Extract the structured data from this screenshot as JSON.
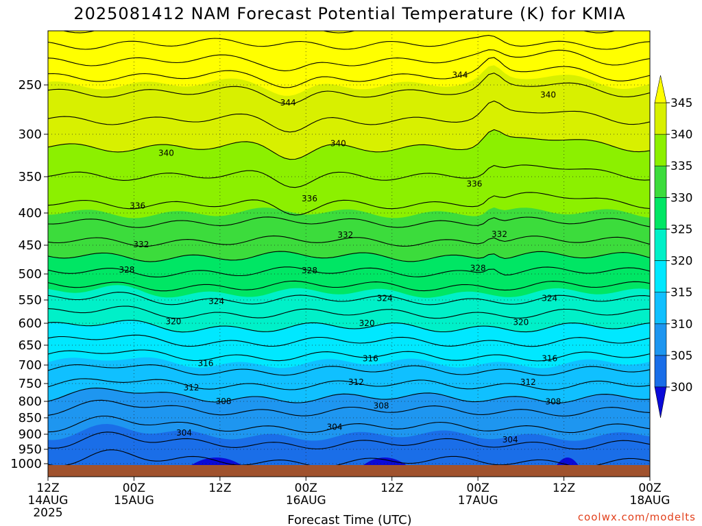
{
  "chart_data": {
    "type": "heatmap",
    "title": "2025081412 NAM Forecast Potential Temperature (K) for KMIA",
    "xlabel": "Forecast Time (UTC)",
    "ylabel": "",
    "x_ticks": [
      {
        "hour": 0,
        "line1": "12Z",
        "line2": "14AUG",
        "line3": "2025"
      },
      {
        "hour": 12,
        "line1": "00Z",
        "line2": "15AUG",
        "line3": ""
      },
      {
        "hour": 24,
        "line1": "12Z",
        "line2": "",
        "line3": ""
      },
      {
        "hour": 36,
        "line1": "00Z",
        "line2": "16AUG",
        "line3": ""
      },
      {
        "hour": 48,
        "line1": "12Z",
        "line2": "",
        "line3": ""
      },
      {
        "hour": 60,
        "line1": "00Z",
        "line2": "17AUG",
        "line3": ""
      },
      {
        "hour": 72,
        "line1": "12Z",
        "line2": "",
        "line3": ""
      },
      {
        "hour": 84,
        "line1": "00Z",
        "line2": "18AUG",
        "line3": ""
      }
    ],
    "xlim": [
      0,
      84
    ],
    "y_ticks": [
      250,
      300,
      350,
      400,
      450,
      500,
      550,
      600,
      650,
      700,
      750,
      800,
      850,
      900,
      950,
      1000
    ],
    "ylim": [
      1010,
      200
    ],
    "colorbar": {
      "levels": [
        300,
        305,
        310,
        315,
        320,
        325,
        330,
        335,
        340,
        345
      ],
      "colors": [
        "#0044dd",
        "#1a6ee8",
        "#1e96f0",
        "#10c0ff",
        "#00e8ff",
        "#00f0c8",
        "#00e664",
        "#3cdc3c",
        "#8cf000",
        "#d8f000",
        "#ffff00"
      ],
      "below_color": "#0a0ad8",
      "above_color": "#ffff00"
    },
    "ground_color": "#a0522d",
    "contour_interval": 2,
    "contour_labels": [
      {
        "value": 344,
        "hour": 33.5,
        "p": 268
      },
      {
        "value": 344,
        "hour": 57.5,
        "p": 240
      },
      {
        "value": 340,
        "hour": 69.8,
        "p": 260
      },
      {
        "value": 340,
        "hour": 16.5,
        "p": 322
      },
      {
        "value": 340,
        "hour": 40.5,
        "p": 311
      },
      {
        "value": 336,
        "hour": 59.5,
        "p": 360
      },
      {
        "value": 336,
        "hour": 12.5,
        "p": 390
      },
      {
        "value": 336,
        "hour": 36.5,
        "p": 380
      },
      {
        "value": 332,
        "hour": 13.0,
        "p": 449
      },
      {
        "value": 332,
        "hour": 41.5,
        "p": 434
      },
      {
        "value": 332,
        "hour": 63.0,
        "p": 433
      },
      {
        "value": 328,
        "hour": 11.0,
        "p": 493
      },
      {
        "value": 328,
        "hour": 36.5,
        "p": 494
      },
      {
        "value": 328,
        "hour": 60.0,
        "p": 490
      },
      {
        "value": 324,
        "hour": 23.5,
        "p": 553
      },
      {
        "value": 324,
        "hour": 47.0,
        "p": 547
      },
      {
        "value": 324,
        "hour": 70.0,
        "p": 547
      },
      {
        "value": 320,
        "hour": 17.5,
        "p": 596
      },
      {
        "value": 320,
        "hour": 44.5,
        "p": 600
      },
      {
        "value": 320,
        "hour": 66.0,
        "p": 598
      },
      {
        "value": 316,
        "hour": 22.0,
        "p": 696
      },
      {
        "value": 316,
        "hour": 45.0,
        "p": 684
      },
      {
        "value": 316,
        "hour": 70.0,
        "p": 684
      },
      {
        "value": 312,
        "hour": 20.0,
        "p": 762
      },
      {
        "value": 312,
        "hour": 43.0,
        "p": 746
      },
      {
        "value": 312,
        "hour": 67.0,
        "p": 746
      },
      {
        "value": 308,
        "hour": 24.5,
        "p": 800
      },
      {
        "value": 308,
        "hour": 46.5,
        "p": 814
      },
      {
        "value": 308,
        "hour": 70.5,
        "p": 801
      },
      {
        "value": 304,
        "hour": 19.0,
        "p": 896
      },
      {
        "value": 304,
        "hour": 40.0,
        "p": 878
      },
      {
        "value": 304,
        "hour": 64.5,
        "p": 918
      }
    ]
  },
  "credit": "coolwx.com/modelts"
}
